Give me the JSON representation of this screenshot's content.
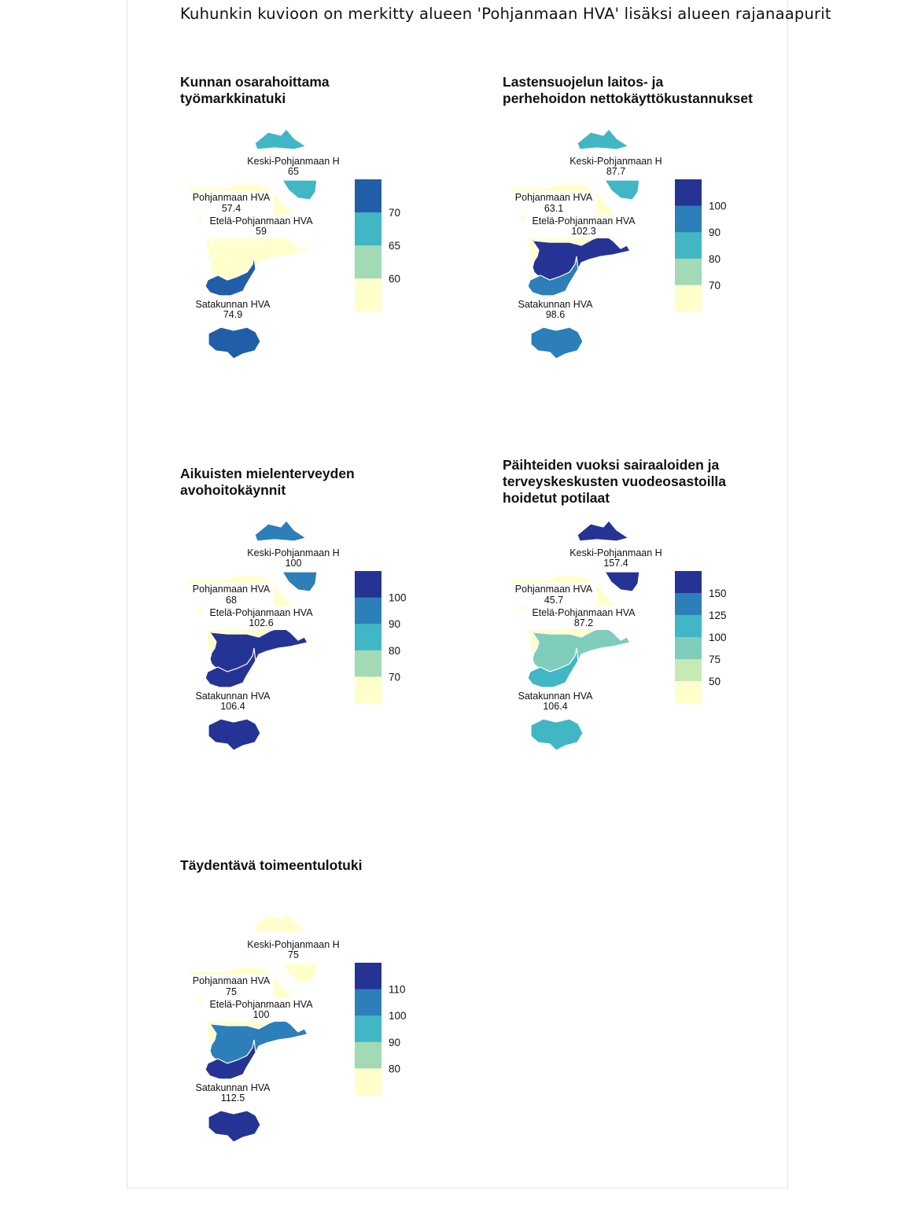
{
  "main_title": "Kuhunkin kuvioon on merkitty alueen 'Pohjanmaan HVA' lisäksi alueen rajanaapurit",
  "colors": {
    "c1": "#ffffcc",
    "c2": "#c7e9b4",
    "c3": "#a1dab4",
    "c3b": "#7fcdbb",
    "c4": "#41b6c4",
    "c5": "#2c7fb8",
    "c6": "#225ea8",
    "c7": "#253494"
  },
  "region_names": {
    "keski": "Keski-Pohjanmaan H",
    "pohjanmaa": "Pohjanmaan HVA",
    "etela": "Etelä-Pohjanmaan HVA",
    "satakunta": "Satakunnan HVA"
  },
  "panels": [
    {
      "title": "Kunnan osarahoittama\ntyömarkkinatuki",
      "values": {
        "keski": "65",
        "pohjanmaa": "57.4",
        "etela": "59",
        "satakunta": "74.9"
      },
      "fills": {
        "keski": "#41b6c4",
        "pohjanmaa": "#ffffcc",
        "etela": "#ffffcc",
        "satakunta": "#225ea8"
      },
      "legend": {
        "colors": [
          "#225ea8",
          "#41b6c4",
          "#a1dab4",
          "#ffffcc"
        ],
        "ticks": [
          "70",
          "65",
          "60"
        ]
      }
    },
    {
      "title": "Lastensuojelun laitos- ja\nperhehoidon nettokäyttökustannukset",
      "values": {
        "keski": "87.7",
        "pohjanmaa": "63.1",
        "etela": "102.3",
        "satakunta": "98.6"
      },
      "fills": {
        "keski": "#41b6c4",
        "pohjanmaa": "#ffffcc",
        "etela": "#253494",
        "satakunta": "#2c7fb8"
      },
      "legend": {
        "colors": [
          "#253494",
          "#2c7fb8",
          "#41b6c4",
          "#a1dab4",
          "#ffffcc"
        ],
        "ticks": [
          "100",
          "90",
          "80",
          "70"
        ]
      }
    },
    {
      "title": "Aikuisten mielenterveyden\navohoitokäynnit",
      "values": {
        "keski": "100",
        "pohjanmaa": "68",
        "etela": "102.6",
        "satakunta": "106.4"
      },
      "fills": {
        "keski": "#2c7fb8",
        "pohjanmaa": "#ffffcc",
        "etela": "#253494",
        "satakunta": "#253494"
      },
      "legend": {
        "colors": [
          "#253494",
          "#2c7fb8",
          "#41b6c4",
          "#a1dab4",
          "#ffffcc"
        ],
        "ticks": [
          "100",
          "90",
          "80",
          "70"
        ]
      }
    },
    {
      "title": "Päihteiden vuoksi sairaaloiden ja\nterveyskeskusten vuodeosastoilla\nhoidetut potilaat",
      "values": {
        "keski": "157.4",
        "pohjanmaa": "45.7",
        "etela": "87.2",
        "satakunta": "106.4"
      },
      "fills": {
        "keski": "#253494",
        "pohjanmaa": "#ffffcc",
        "etela": "#7fcdbb",
        "satakunta": "#41b6c4"
      },
      "legend": {
        "colors": [
          "#253494",
          "#2c7fb8",
          "#41b6c4",
          "#7fcdbb",
          "#c7e9b4",
          "#ffffcc"
        ],
        "ticks": [
          "150",
          "125",
          "100",
          "75",
          "50"
        ]
      }
    },
    {
      "title": "Täydentävä toimeentulotuki",
      "values": {
        "keski": "75",
        "pohjanmaa": "75",
        "etela": "100",
        "satakunta": "112.5"
      },
      "fills": {
        "keski": "#ffffcc",
        "pohjanmaa": "#ffffcc",
        "etela": "#2c7fb8",
        "satakunta": "#253494"
      },
      "legend": {
        "colors": [
          "#253494",
          "#2c7fb8",
          "#41b6c4",
          "#a1dab4",
          "#ffffcc"
        ],
        "ticks": [
          "110",
          "100",
          "90",
          "80"
        ]
      }
    }
  ]
}
